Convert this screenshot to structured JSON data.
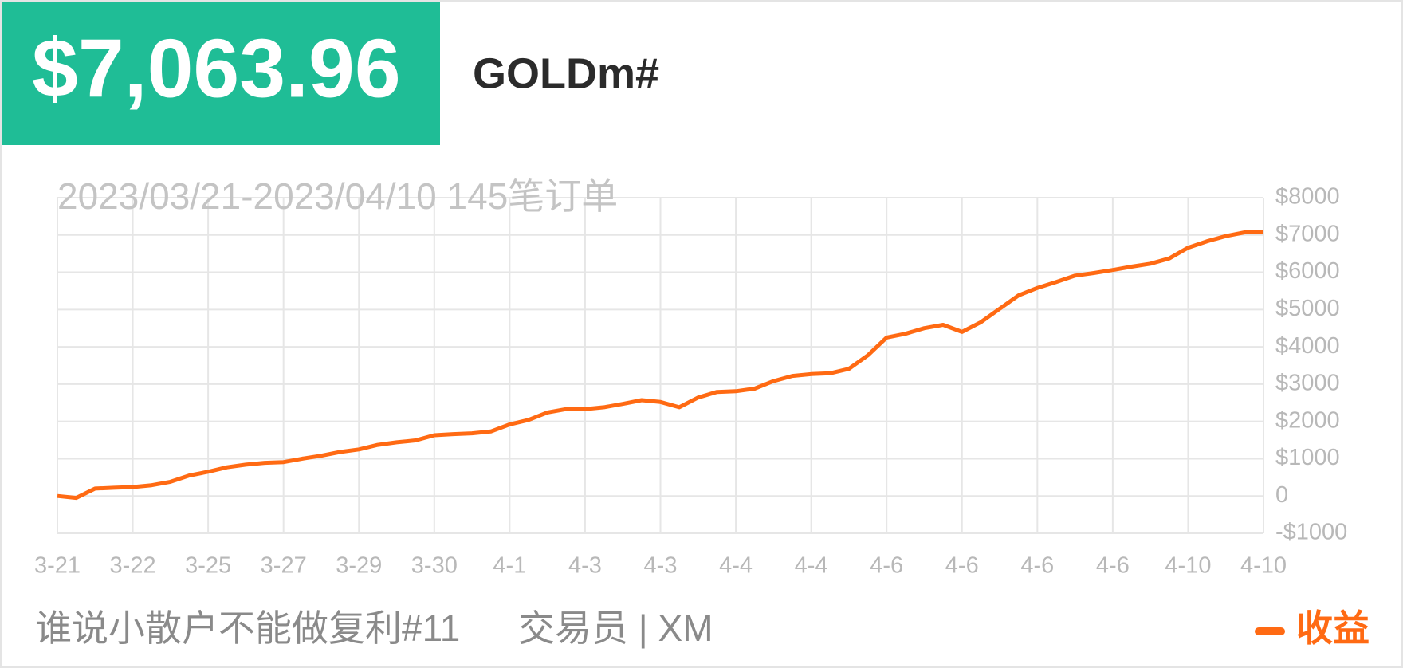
{
  "header": {
    "amount": "$7,063.96",
    "symbol": "GOLDm#"
  },
  "chart_data": {
    "type": "line",
    "subtitle": "2023/03/21-2023/04/10 145笔订单",
    "categories": [
      "3-21",
      null,
      null,
      null,
      "3-22",
      null,
      null,
      null,
      "3-25",
      null,
      null,
      null,
      "3-27",
      null,
      null,
      null,
      "3-29",
      null,
      null,
      null,
      "3-30",
      null,
      null,
      null,
      "4-1",
      null,
      null,
      null,
      "4-3",
      null,
      null,
      null,
      "4-3",
      null,
      null,
      null,
      "4-4",
      null,
      null,
      null,
      "4-4",
      null,
      null,
      null,
      "4-6",
      null,
      null,
      null,
      "4-6",
      null,
      null,
      null,
      "4-6",
      null,
      null,
      null,
      "4-6",
      null,
      null,
      null,
      "4-10",
      null,
      null,
      null,
      "4-10"
    ],
    "series": [
      {
        "name": "收益",
        "color": "#ff6a13",
        "values": [
          0,
          -50,
          200,
          220,
          240,
          290,
          380,
          550,
          650,
          770,
          840,
          890,
          910,
          1000,
          1080,
          1180,
          1250,
          1370,
          1440,
          1490,
          1630,
          1660,
          1680,
          1730,
          1920,
          2040,
          2240,
          2330,
          2330,
          2380,
          2470,
          2570,
          2520,
          2380,
          2640,
          2790,
          2810,
          2880,
          3080,
          3220,
          3270,
          3290,
          3410,
          3770,
          4250,
          4350,
          4500,
          4590,
          4400,
          4660,
          5020,
          5380,
          5580,
          5740,
          5910,
          5980,
          6060,
          6150,
          6230,
          6370,
          6660,
          6830,
          6970,
          7070,
          7070
        ]
      }
    ],
    "ylim": [
      -1000,
      8000
    ],
    "yticks": [
      {
        "value": -1000,
        "label": "-$1000"
      },
      0,
      {
        "value": 1000,
        "label": "$1000"
      },
      {
        "value": 2000,
        "label": "$2000"
      },
      {
        "value": 3000,
        "label": "$3000"
      },
      {
        "value": 4000,
        "label": "$4000"
      },
      {
        "value": 5000,
        "label": "$5000"
      },
      {
        "value": 6000,
        "label": "$6000"
      },
      {
        "value": 7000,
        "label": "$7000"
      },
      {
        "value": 8000,
        "label": "$8000"
      }
    ],
    "grid": true,
    "legend": "bottom-right"
  },
  "footer": {
    "title": "谁说小散户不能做复利#11",
    "trader": "交易员 | XM"
  }
}
